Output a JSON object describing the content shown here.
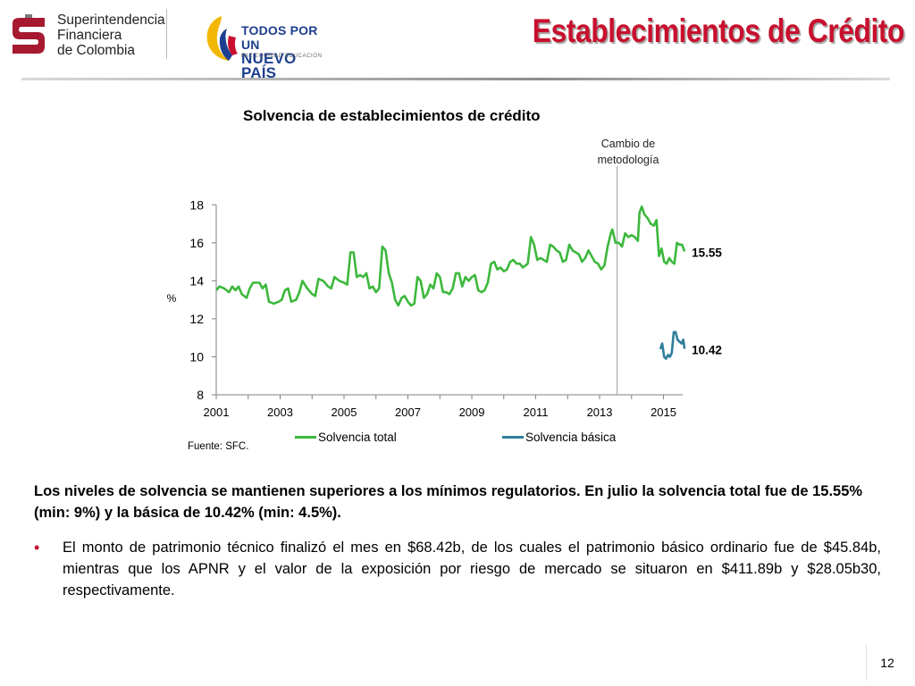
{
  "header": {
    "org_logo_text": "Superintendencia\nFinanciera\nde Colombia",
    "gov_logo_line1": "TODOS POR UN",
    "gov_logo_line2": "NUEVO PAÍS",
    "gov_logo_tagline": "PAZ  EQUIDAD  EDUCACIÓN",
    "title": "Establecimientos de Crédito"
  },
  "colors": {
    "title_red": "#c8102e",
    "series_total": "#3cb83c",
    "series_basica": "#2f7e9a",
    "axis": "#808080"
  },
  "chart_data": {
    "type": "line",
    "title": "Solvencia de establecimientos de crédito",
    "xlabel": "",
    "ylabel": "%",
    "x_ticks": [
      "2001",
      "2003",
      "2005",
      "2007",
      "2009",
      "2011",
      "2013",
      "2015"
    ],
    "y_ticks": [
      8,
      10,
      12,
      14,
      16,
      18
    ],
    "ylim": [
      8,
      19
    ],
    "xlim": [
      2001.0,
      2015.6
    ],
    "grid": false,
    "legend_position": "bottom",
    "annotation": "Cambio de\nmetodología",
    "annotation_x": 2013.55,
    "series": [
      {
        "name": "Solvencia total",
        "color": "#3cb83c",
        "end_label": "15.55",
        "points": [
          [
            2001.0,
            13.5
          ],
          [
            2001.1,
            13.7
          ],
          [
            2001.25,
            13.6
          ],
          [
            2001.4,
            13.4
          ],
          [
            2001.5,
            13.7
          ],
          [
            2001.6,
            13.5
          ],
          [
            2001.7,
            13.7
          ],
          [
            2001.8,
            13.3
          ],
          [
            2001.95,
            13.1
          ],
          [
            2002.05,
            13.6
          ],
          [
            2002.15,
            13.9
          ],
          [
            2002.35,
            13.9
          ],
          [
            2002.45,
            13.6
          ],
          [
            2002.55,
            13.8
          ],
          [
            2002.65,
            12.9
          ],
          [
            2002.8,
            12.8
          ],
          [
            2002.95,
            12.9
          ],
          [
            2003.05,
            13.0
          ],
          [
            2003.15,
            13.5
          ],
          [
            2003.25,
            13.6
          ],
          [
            2003.35,
            12.9
          ],
          [
            2003.5,
            13.0
          ],
          [
            2003.6,
            13.4
          ],
          [
            2003.7,
            14.0
          ],
          [
            2003.85,
            13.6
          ],
          [
            2004.0,
            13.3
          ],
          [
            2004.1,
            13.2
          ],
          [
            2004.2,
            14.1
          ],
          [
            2004.35,
            14.0
          ],
          [
            2004.5,
            13.7
          ],
          [
            2004.6,
            13.6
          ],
          [
            2004.7,
            14.2
          ],
          [
            2004.85,
            14.0
          ],
          [
            2005.0,
            13.9
          ],
          [
            2005.1,
            13.8
          ],
          [
            2005.2,
            15.5
          ],
          [
            2005.3,
            15.5
          ],
          [
            2005.4,
            14.2
          ],
          [
            2005.5,
            14.3
          ],
          [
            2005.6,
            14.2
          ],
          [
            2005.7,
            14.4
          ],
          [
            2005.8,
            13.6
          ],
          [
            2005.9,
            13.7
          ],
          [
            2006.0,
            13.4
          ],
          [
            2006.1,
            13.6
          ],
          [
            2006.2,
            15.8
          ],
          [
            2006.3,
            15.6
          ],
          [
            2006.4,
            14.4
          ],
          [
            2006.5,
            13.9
          ],
          [
            2006.6,
            13.0
          ],
          [
            2006.7,
            12.7
          ],
          [
            2006.8,
            13.1
          ],
          [
            2006.9,
            13.2
          ],
          [
            2007.0,
            12.9
          ],
          [
            2007.1,
            12.7
          ],
          [
            2007.2,
            12.8
          ],
          [
            2007.3,
            14.2
          ],
          [
            2007.4,
            14.0
          ],
          [
            2007.5,
            13.1
          ],
          [
            2007.6,
            13.3
          ],
          [
            2007.7,
            13.8
          ],
          [
            2007.8,
            13.6
          ],
          [
            2007.9,
            14.4
          ],
          [
            2008.0,
            14.2
          ],
          [
            2008.1,
            13.4
          ],
          [
            2008.2,
            13.4
          ],
          [
            2008.3,
            13.3
          ],
          [
            2008.4,
            13.6
          ],
          [
            2008.5,
            14.4
          ],
          [
            2008.6,
            14.4
          ],
          [
            2008.7,
            13.7
          ],
          [
            2008.8,
            14.2
          ],
          [
            2008.9,
            14.0
          ],
          [
            2009.0,
            14.2
          ],
          [
            2009.1,
            14.3
          ],
          [
            2009.2,
            13.5
          ],
          [
            2009.3,
            13.4
          ],
          [
            2009.4,
            13.5
          ],
          [
            2009.5,
            13.9
          ],
          [
            2009.6,
            14.9
          ],
          [
            2009.7,
            15.0
          ],
          [
            2009.8,
            14.6
          ],
          [
            2009.9,
            14.7
          ],
          [
            2010.0,
            14.5
          ],
          [
            2010.1,
            14.6
          ],
          [
            2010.2,
            15.0
          ],
          [
            2010.3,
            15.1
          ],
          [
            2010.4,
            14.9
          ],
          [
            2010.5,
            14.9
          ],
          [
            2010.6,
            14.7
          ],
          [
            2010.75,
            14.9
          ],
          [
            2010.85,
            16.3
          ],
          [
            2010.95,
            15.9
          ],
          [
            2011.05,
            15.1
          ],
          [
            2011.15,
            15.2
          ],
          [
            2011.25,
            15.1
          ],
          [
            2011.35,
            15.0
          ],
          [
            2011.45,
            15.9
          ],
          [
            2011.55,
            15.8
          ],
          [
            2011.65,
            15.6
          ],
          [
            2011.75,
            15.5
          ],
          [
            2011.85,
            15.0
          ],
          [
            2011.95,
            15.1
          ],
          [
            2012.05,
            15.9
          ],
          [
            2012.15,
            15.6
          ],
          [
            2012.25,
            15.5
          ],
          [
            2012.35,
            15.4
          ],
          [
            2012.45,
            15.0
          ],
          [
            2012.55,
            15.2
          ],
          [
            2012.65,
            15.6
          ],
          [
            2012.75,
            15.3
          ],
          [
            2012.85,
            15.0
          ],
          [
            2012.95,
            14.9
          ],
          [
            2013.05,
            14.6
          ],
          [
            2013.15,
            14.8
          ],
          [
            2013.25,
            15.8
          ],
          [
            2013.35,
            16.5
          ],
          [
            2013.4,
            16.7
          ],
          [
            2013.5,
            16.0
          ],
          [
            2013.6,
            16.0
          ],
          [
            2013.7,
            15.8
          ],
          [
            2013.8,
            16.5
          ],
          [
            2013.9,
            16.3
          ],
          [
            2014.0,
            16.4
          ],
          [
            2014.1,
            16.3
          ],
          [
            2014.2,
            16.1
          ],
          [
            2014.25,
            17.6
          ],
          [
            2014.32,
            17.9
          ],
          [
            2014.4,
            17.5
          ],
          [
            2014.5,
            17.3
          ],
          [
            2014.6,
            17.0
          ],
          [
            2014.7,
            16.9
          ],
          [
            2014.78,
            17.2
          ],
          [
            2014.86,
            15.3
          ],
          [
            2014.94,
            15.7
          ],
          [
            2015.02,
            15.0
          ],
          [
            2015.1,
            14.9
          ],
          [
            2015.18,
            15.2
          ],
          [
            2015.26,
            15.0
          ],
          [
            2015.34,
            14.9
          ],
          [
            2015.42,
            16.0
          ],
          [
            2015.5,
            15.9
          ],
          [
            2015.58,
            15.9
          ],
          [
            2015.66,
            15.55
          ]
        ]
      },
      {
        "name": "Solvencia básica",
        "color": "#2f7e9a",
        "end_label": "10.42",
        "points": [
          [
            2014.9,
            10.4
          ],
          [
            2014.96,
            10.7
          ],
          [
            2015.02,
            10.0
          ],
          [
            2015.08,
            9.9
          ],
          [
            2015.14,
            10.1
          ],
          [
            2015.2,
            10.0
          ],
          [
            2015.26,
            10.2
          ],
          [
            2015.32,
            11.3
          ],
          [
            2015.38,
            11.3
          ],
          [
            2015.44,
            10.9
          ],
          [
            2015.5,
            10.8
          ],
          [
            2015.56,
            10.7
          ],
          [
            2015.62,
            10.9
          ],
          [
            2015.66,
            10.42
          ]
        ]
      }
    ]
  },
  "source_note": "Fuente: SFC.",
  "summary": "Los niveles de solvencia se mantienen superiores a los mínimos regulatorios. En julio la solvencia total fue de 15.55% (min: 9%) y la básica de 10.42% (min: 4.5%).",
  "bullets": [
    "El monto de patrimonio técnico finalizó el mes en $68.42b, de los cuales el patrimonio básico ordinario fue de $45.84b, mientras que los APNR y el valor de la exposición por riesgo de mercado se situaron en $411.89b y $28.05b30, respectivamente."
  ],
  "page_number": "12"
}
